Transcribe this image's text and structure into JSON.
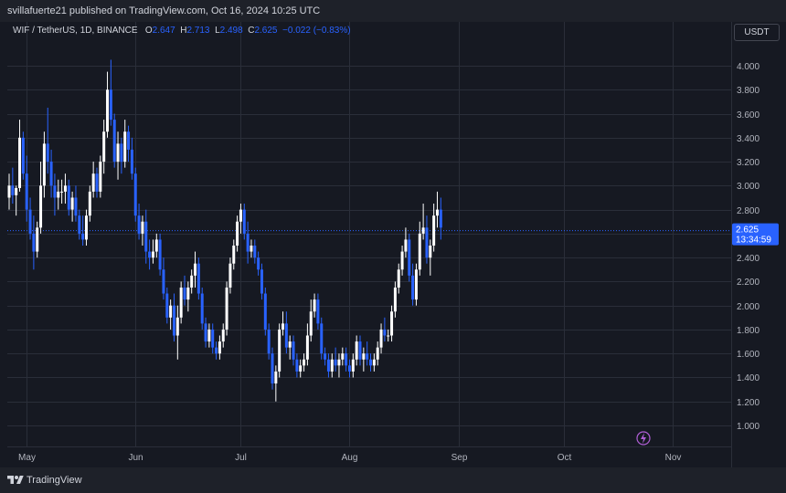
{
  "header": {
    "publisher_text": "svillafuerte21 published on TradingView.com, Oct 16, 2024 10:25 UTC"
  },
  "legend": {
    "symbol": "WIF / TetherUS, 1D, BINANCE",
    "o_label": "O",
    "o_value": "2.647",
    "h_label": "H",
    "h_value": "2.713",
    "l_label": "L",
    "l_value": "2.498",
    "c_label": "C",
    "c_value": "2.625",
    "change": "−0.022 (−0.83%)"
  },
  "scale": {
    "currency_button": "USDT"
  },
  "price_tag": {
    "price": "2.625",
    "countdown": "13:34:59"
  },
  "footer": {
    "brand": "TradingView"
  },
  "colors": {
    "up": "#ffffff",
    "down": "#2962ff",
    "background": "#161922",
    "grid": "#2a2e39",
    "text": "#b2b5be"
  },
  "chart_data": {
    "type": "candlestick",
    "y_ticks": [
      "1.000",
      "1.200",
      "1.400",
      "1.600",
      "1.800",
      "2.000",
      "2.200",
      "2.400",
      "2.600",
      "2.800",
      "3.000",
      "3.200",
      "3.400",
      "3.600",
      "3.800",
      "4.000"
    ],
    "x_ticks": [
      {
        "label": "May",
        "idx": 5
      },
      {
        "label": "Jun",
        "idx": 36
      },
      {
        "label": "Jul",
        "idx": 66
      },
      {
        "label": "Aug",
        "idx": 97
      },
      {
        "label": "Sep",
        "idx": 128
      },
      {
        "label": "Oct",
        "idx": 158
      },
      {
        "label": "Nov",
        "idx": 189
      }
    ],
    "ylim": [
      0.75,
      4.35
    ],
    "last_price": 2.625,
    "candles": [
      [
        2.9,
        3.1,
        2.8,
        3.0
      ],
      [
        3.0,
        3.15,
        2.85,
        2.92
      ],
      [
        2.92,
        3.0,
        2.75,
        2.98
      ],
      [
        2.98,
        3.55,
        2.95,
        3.4
      ],
      [
        3.4,
        3.45,
        3.05,
        3.1
      ],
      [
        3.1,
        3.25,
        2.7,
        2.8
      ],
      [
        2.8,
        2.9,
        2.55,
        2.6
      ],
      [
        2.6,
        2.75,
        2.3,
        2.45
      ],
      [
        2.45,
        2.7,
        2.4,
        2.65
      ],
      [
        2.65,
        3.2,
        2.6,
        3.0
      ],
      [
        3.0,
        3.45,
        2.9,
        3.35
      ],
      [
        3.35,
        3.65,
        3.1,
        3.2
      ],
      [
        3.2,
        3.3,
        2.9,
        3.0
      ],
      [
        3.0,
        3.1,
        2.75,
        2.9
      ],
      [
        2.9,
        3.05,
        2.8,
        2.95
      ],
      [
        2.95,
        3.05,
        2.85,
        2.95
      ],
      [
        2.95,
        3.1,
        2.85,
        3.0
      ],
      [
        3.0,
        3.05,
        2.75,
        2.8
      ],
      [
        2.8,
        2.95,
        2.7,
        2.9
      ],
      [
        2.9,
        3.0,
        2.7,
        2.75
      ],
      [
        2.75,
        2.8,
        2.55,
        2.6
      ],
      [
        2.6,
        2.75,
        2.5,
        2.55
      ],
      [
        2.55,
        2.8,
        2.5,
        2.75
      ],
      [
        2.75,
        3.0,
        2.7,
        2.95
      ],
      [
        2.95,
        3.2,
        2.9,
        3.1
      ],
      [
        3.1,
        3.15,
        2.9,
        2.95
      ],
      [
        2.95,
        3.25,
        2.9,
        3.2
      ],
      [
        3.2,
        3.55,
        3.1,
        3.45
      ],
      [
        3.45,
        3.95,
        3.4,
        3.8
      ],
      [
        3.8,
        4.05,
        3.5,
        3.55
      ],
      [
        3.55,
        3.6,
        3.15,
        3.2
      ],
      [
        3.2,
        3.45,
        3.05,
        3.35
      ],
      [
        3.35,
        3.4,
        3.1,
        3.2
      ],
      [
        3.2,
        3.55,
        3.15,
        3.45
      ],
      [
        3.45,
        3.5,
        3.2,
        3.3
      ],
      [
        3.3,
        3.4,
        3.05,
        3.1
      ],
      [
        3.1,
        3.15,
        2.7,
        2.75
      ],
      [
        2.75,
        2.85,
        2.55,
        2.6
      ],
      [
        2.6,
        2.75,
        2.5,
        2.7
      ],
      [
        2.7,
        2.8,
        2.35,
        2.45
      ],
      [
        2.45,
        2.55,
        2.3,
        2.4
      ],
      [
        2.4,
        2.55,
        2.35,
        2.45
      ],
      [
        2.45,
        2.6,
        2.4,
        2.55
      ],
      [
        2.55,
        2.6,
        2.25,
        2.3
      ],
      [
        2.3,
        2.4,
        2.05,
        2.1
      ],
      [
        2.1,
        2.15,
        1.85,
        1.9
      ],
      [
        1.9,
        2.05,
        1.8,
        2.0
      ],
      [
        2.0,
        2.1,
        1.7,
        1.75
      ],
      [
        1.75,
        2.0,
        1.55,
        1.9
      ],
      [
        1.9,
        2.2,
        1.85,
        2.15
      ],
      [
        2.15,
        2.25,
        2.0,
        2.05
      ],
      [
        2.05,
        2.2,
        1.95,
        2.15
      ],
      [
        2.15,
        2.3,
        2.1,
        2.25
      ],
      [
        2.25,
        2.45,
        2.15,
        2.35
      ],
      [
        2.35,
        2.4,
        2.05,
        2.1
      ],
      [
        2.1,
        2.15,
        1.8,
        1.85
      ],
      [
        1.85,
        1.9,
        1.65,
        1.7
      ],
      [
        1.7,
        1.85,
        1.65,
        1.8
      ],
      [
        1.8,
        1.85,
        1.6,
        1.65
      ],
      [
        1.65,
        1.7,
        1.55,
        1.6
      ],
      [
        1.6,
        1.75,
        1.55,
        1.7
      ],
      [
        1.7,
        1.85,
        1.65,
        1.8
      ],
      [
        1.8,
        2.2,
        1.75,
        2.15
      ],
      [
        2.15,
        2.4,
        2.1,
        2.35
      ],
      [
        2.35,
        2.55,
        2.3,
        2.5
      ],
      [
        2.5,
        2.75,
        2.45,
        2.7
      ],
      [
        2.7,
        2.85,
        2.6,
        2.8
      ],
      [
        2.8,
        2.85,
        2.55,
        2.6
      ],
      [
        2.6,
        2.7,
        2.35,
        2.45
      ],
      [
        2.45,
        2.55,
        2.4,
        2.5
      ],
      [
        2.5,
        2.55,
        2.35,
        2.4
      ],
      [
        2.4,
        2.45,
        2.25,
        2.3
      ],
      [
        2.3,
        2.35,
        2.05,
        2.1
      ],
      [
        2.1,
        2.15,
        1.75,
        1.8
      ],
      [
        1.8,
        1.85,
        1.55,
        1.6
      ],
      [
        1.6,
        1.65,
        1.3,
        1.35
      ],
      [
        1.35,
        1.5,
        1.2,
        1.45
      ],
      [
        1.45,
        1.85,
        1.4,
        1.8
      ],
      [
        1.8,
        1.95,
        1.75,
        1.85
      ],
      [
        1.85,
        1.95,
        1.6,
        1.65
      ],
      [
        1.65,
        1.75,
        1.55,
        1.7
      ],
      [
        1.7,
        1.75,
        1.5,
        1.55
      ],
      [
        1.55,
        1.6,
        1.4,
        1.45
      ],
      [
        1.45,
        1.55,
        1.4,
        1.5
      ],
      [
        1.5,
        1.6,
        1.45,
        1.55
      ],
      [
        1.55,
        1.85,
        1.5,
        1.75
      ],
      [
        1.75,
        2.05,
        1.7,
        1.95
      ],
      [
        1.95,
        2.1,
        1.9,
        2.05
      ],
      [
        2.05,
        2.1,
        1.8,
        1.85
      ],
      [
        1.85,
        1.9,
        1.55,
        1.6
      ],
      [
        1.6,
        1.65,
        1.5,
        1.55
      ],
      [
        1.55,
        1.6,
        1.4,
        1.45
      ],
      [
        1.45,
        1.6,
        1.4,
        1.55
      ],
      [
        1.55,
        1.65,
        1.45,
        1.5
      ],
      [
        1.5,
        1.6,
        1.4,
        1.55
      ],
      [
        1.55,
        1.65,
        1.5,
        1.6
      ],
      [
        1.6,
        1.65,
        1.45,
        1.5
      ],
      [
        1.5,
        1.55,
        1.4,
        1.45
      ],
      [
        1.45,
        1.6,
        1.4,
        1.55
      ],
      [
        1.55,
        1.75,
        1.5,
        1.7
      ],
      [
        1.7,
        1.75,
        1.5,
        1.55
      ],
      [
        1.55,
        1.65,
        1.45,
        1.6
      ],
      [
        1.6,
        1.7,
        1.5,
        1.55
      ],
      [
        1.55,
        1.6,
        1.45,
        1.5
      ],
      [
        1.5,
        1.6,
        1.45,
        1.55
      ],
      [
        1.55,
        1.7,
        1.5,
        1.65
      ],
      [
        1.65,
        1.85,
        1.6,
        1.8
      ],
      [
        1.8,
        1.9,
        1.7,
        1.75
      ],
      [
        1.75,
        1.8,
        1.7,
        1.75
      ],
      [
        1.75,
        2.0,
        1.7,
        1.95
      ],
      [
        1.95,
        2.2,
        1.9,
        2.15
      ],
      [
        2.15,
        2.35,
        2.1,
        2.3
      ],
      [
        2.3,
        2.5,
        2.25,
        2.45
      ],
      [
        2.45,
        2.65,
        2.4,
        2.55
      ],
      [
        2.55,
        2.6,
        2.2,
        2.25
      ],
      [
        2.25,
        2.35,
        2.0,
        2.05
      ],
      [
        2.05,
        2.35,
        2.0,
        2.3
      ],
      [
        2.3,
        2.7,
        2.25,
        2.6
      ],
      [
        2.6,
        2.85,
        2.55,
        2.65
      ],
      [
        2.65,
        2.75,
        2.35,
        2.4
      ],
      [
        2.4,
        2.55,
        2.25,
        2.5
      ],
      [
        2.5,
        2.85,
        2.45,
        2.75
      ],
      [
        2.75,
        2.95,
        2.65,
        2.8
      ],
      [
        2.8,
        2.9,
        2.55,
        2.65
      ]
    ]
  }
}
